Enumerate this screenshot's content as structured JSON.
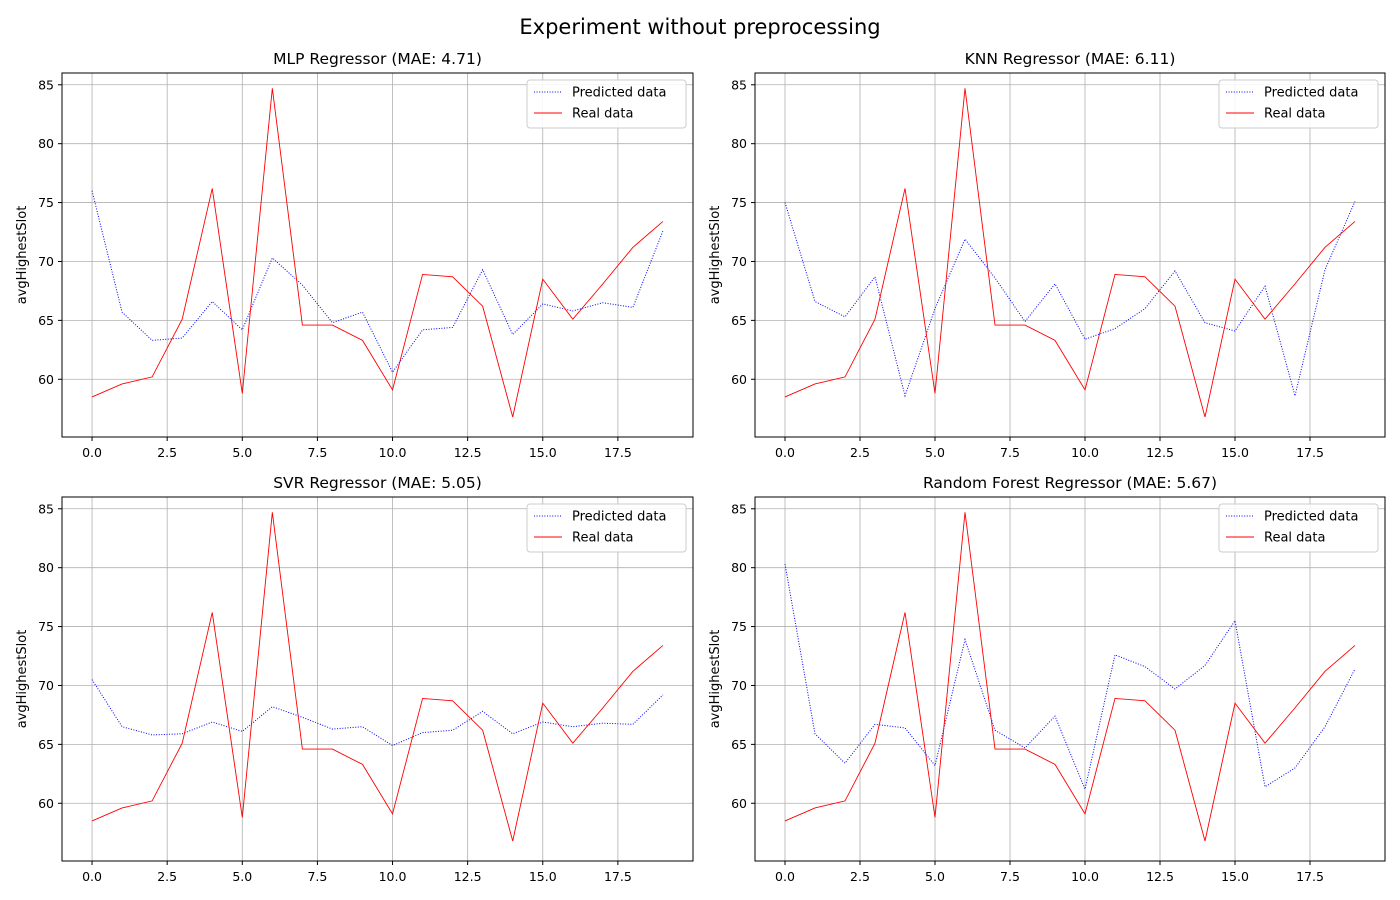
{
  "figure": {
    "suptitle": "Experiment without preprocessing"
  },
  "chart_data": [
    {
      "type": "line",
      "title": "MLP Regressor (MAE: 4.71)",
      "xlabel": "",
      "ylabel": "avgHighestSlot",
      "xlim": [
        -1,
        20
      ],
      "ylim": [
        55.1,
        86.0
      ],
      "xticks": [
        0,
        2.5,
        5,
        7.5,
        10,
        12.5,
        15,
        17.5
      ],
      "xtick_labels": [
        "0.0",
        "2.5",
        "5.0",
        "7.5",
        "10.0",
        "12.5",
        "15.0",
        "17.5"
      ],
      "yticks": [
        60,
        65,
        70,
        75,
        80,
        85
      ],
      "ytick_labels": [
        "60",
        "65",
        "70",
        "75",
        "80",
        "85"
      ],
      "grid": true,
      "legend": "upper-right",
      "x": [
        0,
        1,
        2,
        3,
        4,
        5,
        6,
        7,
        8,
        9,
        10,
        11,
        12,
        13,
        14,
        15,
        16,
        17,
        18,
        19
      ],
      "series": [
        {
          "name": "Predicted data",
          "color": "#0000ff",
          "style": "dotted",
          "values": [
            76.0,
            65.7,
            63.3,
            63.5,
            66.6,
            64.2,
            70.3,
            68.0,
            64.8,
            65.7,
            60.6,
            64.2,
            64.4,
            69.3,
            63.8,
            66.4,
            65.8,
            66.5,
            66.1,
            72.6
          ]
        },
        {
          "name": "Real data",
          "color": "#ff0000",
          "style": "solid",
          "values": [
            58.5,
            59.6,
            60.2,
            65.1,
            76.2,
            58.8,
            84.7,
            64.6,
            64.6,
            63.3,
            59.1,
            68.9,
            68.7,
            66.2,
            56.8,
            68.5,
            65.1,
            68.1,
            71.2,
            73.4
          ]
        }
      ]
    },
    {
      "type": "line",
      "title": "KNN Regressor (MAE: 6.11)",
      "xlabel": "",
      "ylabel": "avgHighestSlot",
      "xlim": [
        -1,
        20
      ],
      "ylim": [
        55.1,
        86.0
      ],
      "xticks": [
        0,
        2.5,
        5,
        7.5,
        10,
        12.5,
        15,
        17.5
      ],
      "xtick_labels": [
        "0.0",
        "2.5",
        "5.0",
        "7.5",
        "10.0",
        "12.5",
        "15.0",
        "17.5"
      ],
      "yticks": [
        60,
        65,
        70,
        75,
        80,
        85
      ],
      "ytick_labels": [
        "60",
        "65",
        "70",
        "75",
        "80",
        "85"
      ],
      "grid": true,
      "legend": "upper-right",
      "x": [
        0,
        1,
        2,
        3,
        4,
        5,
        6,
        7,
        8,
        9,
        10,
        11,
        12,
        13,
        14,
        15,
        16,
        17,
        18,
        19
      ],
      "series": [
        {
          "name": "Predicted data",
          "color": "#0000ff",
          "style": "dotted",
          "values": [
            75.0,
            66.6,
            65.3,
            68.7,
            58.6,
            66.0,
            71.9,
            68.6,
            64.9,
            68.1,
            63.4,
            64.3,
            66.0,
            69.2,
            64.8,
            64.1,
            67.9,
            58.6,
            69.3,
            75.1
          ]
        },
        {
          "name": "Real data",
          "color": "#ff0000",
          "style": "solid",
          "values": [
            58.5,
            59.6,
            60.2,
            65.1,
            76.2,
            58.8,
            84.7,
            64.6,
            64.6,
            63.3,
            59.1,
            68.9,
            68.7,
            66.2,
            56.8,
            68.5,
            65.1,
            68.1,
            71.2,
            73.4
          ]
        }
      ]
    },
    {
      "type": "line",
      "title": "SVR Regressor (MAE: 5.05)",
      "xlabel": "",
      "ylabel": "avgHighestSlot",
      "xlim": [
        -1,
        20
      ],
      "ylim": [
        55.1,
        86.0
      ],
      "xticks": [
        0,
        2.5,
        5,
        7.5,
        10,
        12.5,
        15,
        17.5
      ],
      "xtick_labels": [
        "0.0",
        "2.5",
        "5.0",
        "7.5",
        "10.0",
        "12.5",
        "15.0",
        "17.5"
      ],
      "yticks": [
        60,
        65,
        70,
        75,
        80,
        85
      ],
      "ytick_labels": [
        "60",
        "65",
        "70",
        "75",
        "80",
        "85"
      ],
      "grid": true,
      "legend": "upper-right",
      "x": [
        0,
        1,
        2,
        3,
        4,
        5,
        6,
        7,
        8,
        9,
        10,
        11,
        12,
        13,
        14,
        15,
        16,
        17,
        18,
        19
      ],
      "series": [
        {
          "name": "Predicted data",
          "color": "#0000ff",
          "style": "dotted",
          "values": [
            70.5,
            66.5,
            65.8,
            65.9,
            66.9,
            66.1,
            68.2,
            67.3,
            66.3,
            66.5,
            64.9,
            66.0,
            66.2,
            67.8,
            65.9,
            66.9,
            66.5,
            66.8,
            66.7,
            69.2
          ]
        },
        {
          "name": "Real data",
          "color": "#ff0000",
          "style": "solid",
          "values": [
            58.5,
            59.6,
            60.2,
            65.1,
            76.2,
            58.8,
            84.7,
            64.6,
            64.6,
            63.3,
            59.1,
            68.9,
            68.7,
            66.2,
            56.8,
            68.5,
            65.1,
            68.1,
            71.2,
            73.4
          ]
        }
      ]
    },
    {
      "type": "line",
      "title": "Random Forest Regressor (MAE: 5.67)",
      "xlabel": "",
      "ylabel": "avgHighestSlot",
      "xlim": [
        -1,
        20
      ],
      "ylim": [
        55.1,
        86.0
      ],
      "xticks": [
        0,
        2.5,
        5,
        7.5,
        10,
        12.5,
        15,
        17.5
      ],
      "xtick_labels": [
        "0.0",
        "2.5",
        "5.0",
        "7.5",
        "10.0",
        "12.5",
        "15.0",
        "17.5"
      ],
      "yticks": [
        60,
        65,
        70,
        75,
        80,
        85
      ],
      "ytick_labels": [
        "60",
        "65",
        "70",
        "75",
        "80",
        "85"
      ],
      "grid": true,
      "legend": "upper-right",
      "x": [
        0,
        1,
        2,
        3,
        4,
        5,
        6,
        7,
        8,
        9,
        10,
        11,
        12,
        13,
        14,
        15,
        16,
        17,
        18,
        19
      ],
      "series": [
        {
          "name": "Predicted data",
          "color": "#0000ff",
          "style": "dotted",
          "values": [
            80.3,
            65.9,
            63.4,
            66.7,
            66.4,
            63.2,
            73.9,
            66.2,
            64.7,
            67.4,
            61.2,
            72.6,
            71.6,
            69.7,
            71.7,
            75.5,
            61.4,
            63.0,
            66.5,
            71.4
          ]
        },
        {
          "name": "Real data",
          "color": "#ff0000",
          "style": "solid",
          "values": [
            58.5,
            59.6,
            60.2,
            65.1,
            76.2,
            58.8,
            84.7,
            64.6,
            64.6,
            63.3,
            59.1,
            68.9,
            68.7,
            66.2,
            56.8,
            68.5,
            65.1,
            68.1,
            71.2,
            73.4
          ]
        }
      ]
    }
  ]
}
